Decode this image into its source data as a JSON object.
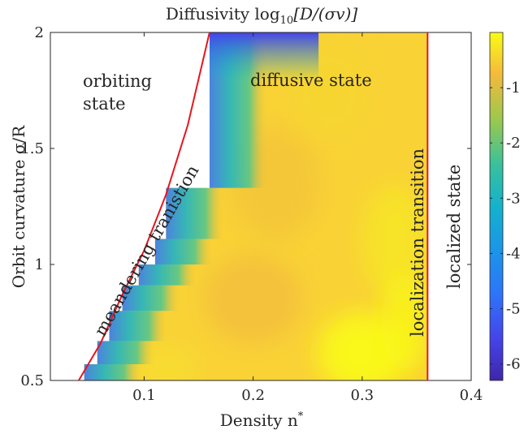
{
  "chart_data": {
    "type": "heatmap",
    "title_main": "Diffusivity log",
    "title_sub": "10",
    "title_tail": "[D/(σv)]",
    "xlabel_main": "Density n",
    "xlabel_sup": "*",
    "ylabel_main": "Orbit curvature σ/R",
    "xlim": [
      0.014,
      0.4
    ],
    "ylim": [
      0.5,
      2.0
    ],
    "xticks": [
      0.1,
      0.2,
      0.3,
      0.4
    ],
    "xtick_labels": [
      "0.1",
      "0.2",
      "0.3",
      "0.4"
    ],
    "yticks": [
      0.5,
      1.0,
      1.5,
      2.0
    ],
    "ytick_labels": [
      "0.5",
      "1",
      "1.5",
      "2"
    ],
    "colorbar": {
      "range": [
        -6.3,
        0
      ],
      "ticks": [
        -6,
        -5,
        -4,
        -3,
        -2,
        -1
      ],
      "tick_labels": [
        "-6",
        "-5",
        "-4",
        "-3",
        "-2",
        "-1"
      ],
      "colormap": "parula"
    },
    "meandering_transition_curve": {
      "color": "#e8141e",
      "points": [
        [
          0.04,
          0.5
        ],
        [
          0.06,
          0.66
        ],
        [
          0.08,
          0.87
        ],
        [
          0.1,
          1.06
        ],
        [
          0.12,
          1.3
        ],
        [
          0.14,
          1.6
        ],
        [
          0.16,
          2.0
        ]
      ]
    },
    "localization_transition": {
      "x": 0.36,
      "color": "#e8141e"
    },
    "diffusive_region_staircase": [
      [
        0.045,
        0.57
      ],
      [
        0.057,
        0.67
      ],
      [
        0.068,
        0.8
      ],
      [
        0.08,
        0.91
      ],
      [
        0.095,
        1.0
      ],
      [
        0.11,
        1.11
      ],
      [
        0.12,
        1.33
      ],
      [
        0.16,
        2.0
      ]
    ],
    "annotations": [
      {
        "id": "orbiting",
        "lines": [
          "orbiting",
          "state"
        ]
      },
      {
        "id": "diffusive",
        "lines": [
          "diffusive state"
        ]
      },
      {
        "id": "meandering",
        "lines": [
          "meandering tranistion"
        ]
      },
      {
        "id": "localization_transition",
        "lines": [
          "localization transition"
        ]
      },
      {
        "id": "localized",
        "lines": [
          "localized state"
        ]
      }
    ]
  }
}
